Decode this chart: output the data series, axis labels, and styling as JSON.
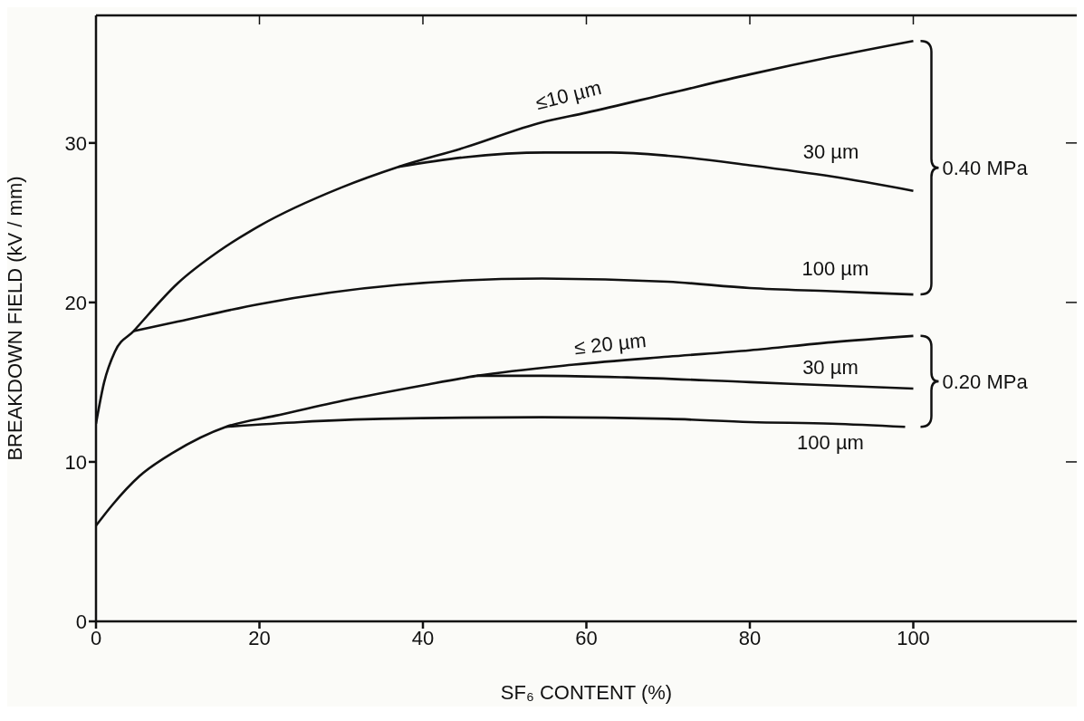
{
  "chart_data": {
    "type": "line",
    "xlabel": "SF₆ CONTENT (%)",
    "ylabel": "BREAKDOWN FIELD (kV / mm)",
    "xlim": [
      0,
      120
    ],
    "xticks": [
      0,
      20,
      40,
      60,
      80,
      100
    ],
    "ylim": [
      0,
      38
    ],
    "yticks": [
      0,
      10,
      20,
      30
    ],
    "marker": "none",
    "line_style": "solid",
    "annotations": [
      "0.40 MPa",
      "0.20 MPa"
    ],
    "series": [
      {
        "name": "≤10 µm",
        "color": "#111111",
        "x": [
          0,
          1,
          2.3,
          4.6,
          10,
          15,
          20,
          30,
          37,
          45,
          54.6,
          60,
          70,
          80,
          90,
          100
        ],
        "values": [
          12.4,
          15.0,
          16.9,
          18.2,
          21.2,
          23.2,
          24.8,
          27.2,
          28.5,
          29.7,
          31.3,
          31.9,
          33.1,
          34.3,
          35.4,
          36.4
        ]
      },
      {
        "name": "30 µm",
        "color": "#111111",
        "x": [
          37,
          45,
          55,
          63,
          70,
          80,
          90,
          100
        ],
        "values": [
          28.5,
          29.1,
          29.4,
          29.4,
          29.2,
          28.6,
          27.9,
          27.0
        ]
      },
      {
        "name": "100 µm",
        "color": "#111111",
        "x": [
          4.6,
          10,
          20,
          37,
          54.6,
          70,
          80,
          90,
          100
        ],
        "values": [
          18.2,
          18.8,
          19.9,
          21.1,
          21.5,
          21.3,
          20.9,
          20.7,
          20.5
        ]
      },
      {
        "name": "≤ 20 µm",
        "color": "#111111",
        "x": [
          0,
          2,
          5.3,
          9.5,
          15.9,
          22,
          30.8,
          40,
          46.6,
          58.5,
          70,
          80,
          90,
          100
        ],
        "values": [
          6.0,
          7.3,
          9.1,
          10.6,
          12.2,
          12.9,
          13.9,
          14.8,
          15.4,
          16.1,
          16.6,
          17.0,
          17.5,
          17.9
        ]
      },
      {
        "name": "30 µm",
        "color": "#111111",
        "x": [
          46.6,
          54.6,
          65,
          80,
          90,
          100
        ],
        "values": [
          15.4,
          15.4,
          15.3,
          15.0,
          14.8,
          14.6
        ]
      },
      {
        "name": "100 µm",
        "color": "#111111",
        "x": [
          15.9,
          25,
          35,
          54.6,
          70,
          80,
          90,
          99
        ],
        "values": [
          12.2,
          12.5,
          12.7,
          12.8,
          12.7,
          12.5,
          12.4,
          12.2
        ]
      }
    ]
  }
}
